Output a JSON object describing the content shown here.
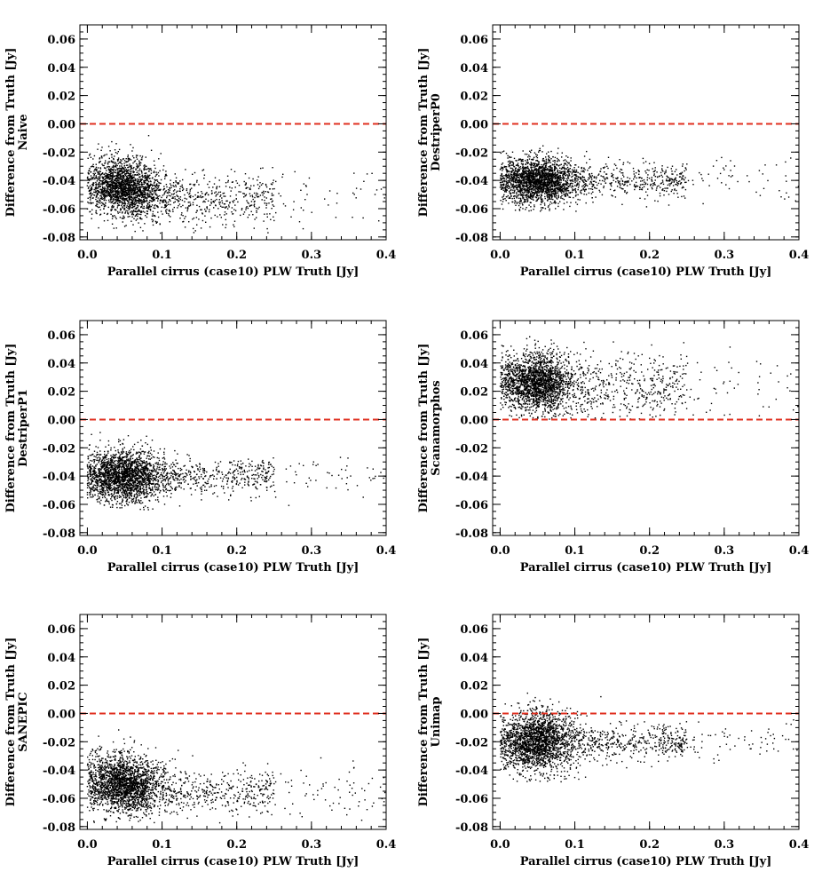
{
  "figure": {
    "layout": "3 rows x 2 columns",
    "reference_line_color": "#e03020",
    "point_color": "#000000"
  },
  "chart_data": [
    {
      "type": "scatter",
      "panel": "naive",
      "method": "Naive",
      "xlabel": "Parallel cirrus (case10) PLW Truth [Jy]",
      "ylabel": "Difference from Truth [Jy]",
      "xlim": [
        -0.01,
        0.4
      ],
      "ylim": [
        -0.082,
        0.07
      ],
      "xticks": [
        "0.0",
        "0.1",
        "0.2",
        "0.3",
        "0.4"
      ],
      "yticks": [
        "-0.08",
        "-0.06",
        "-0.04",
        "-0.02",
        "0.00",
        "0.02",
        "0.04",
        "0.06"
      ],
      "reference_line": 0.0,
      "cloud": {
        "x_center": 0.05,
        "y_center": -0.045,
        "x_spread": 0.03,
        "y_spread": 0.01,
        "slope": -0.08,
        "tail_y": -0.052,
        "tail_spread": 0.009,
        "y_min": -0.078,
        "y_max": 0.02
      }
    },
    {
      "type": "scatter",
      "panel": "destriperp0",
      "method": "DestriperP0",
      "xlabel": "Parallel cirrus (case10) PLW Truth [Jy]",
      "ylabel": "Difference from Truth [Jy]",
      "xlim": [
        -0.01,
        0.4
      ],
      "ylim": [
        -0.082,
        0.07
      ],
      "xticks": [
        "0.0",
        "0.1",
        "0.2",
        "0.3",
        "0.4"
      ],
      "yticks": [
        "-0.08",
        "-0.06",
        "-0.04",
        "-0.02",
        "0.00",
        "0.02",
        "0.04",
        "0.06"
      ],
      "reference_line": 0.0,
      "cloud": {
        "x_center": 0.05,
        "y_center": -0.04,
        "x_spread": 0.03,
        "y_spread": 0.008,
        "slope": 0.0,
        "tail_y": -0.04,
        "tail_spread": 0.006,
        "y_min": -0.062,
        "y_max": 0.02
      }
    },
    {
      "type": "scatter",
      "panel": "destriperp1",
      "method": "DestriperP1",
      "xlabel": "Parallel cirrus (case10) PLW Truth [Jy]",
      "ylabel": "Difference from Truth [Jy]",
      "xlim": [
        -0.01,
        0.4
      ],
      "ylim": [
        -0.082,
        0.07
      ],
      "xticks": [
        "0.0",
        "0.1",
        "0.2",
        "0.3",
        "0.4"
      ],
      "yticks": [
        "-0.08",
        "-0.06",
        "-0.04",
        "-0.02",
        "0.00",
        "0.02",
        "0.04",
        "0.06"
      ],
      "reference_line": 0.0,
      "cloud": {
        "x_center": 0.05,
        "y_center": -0.04,
        "x_spread": 0.03,
        "y_spread": 0.009,
        "slope": 0.0,
        "tail_y": -0.04,
        "tail_spread": 0.006,
        "y_min": -0.064,
        "y_max": 0.02
      }
    },
    {
      "type": "scatter",
      "panel": "scanamorphos",
      "method": "Scanamorphos",
      "xlabel": "Parallel cirrus (case10) PLW Truth [Jy]",
      "ylabel": "Difference from Truth [Jy]",
      "xlim": [
        -0.01,
        0.4
      ],
      "ylim": [
        -0.082,
        0.07
      ],
      "xticks": [
        "0.0",
        "0.1",
        "0.2",
        "0.3",
        "0.4"
      ],
      "yticks": [
        "-0.08",
        "-0.06",
        "-0.04",
        "-0.02",
        "0.00",
        "0.02",
        "0.04",
        "0.06"
      ],
      "reference_line": 0.0,
      "cloud": {
        "x_center": 0.05,
        "y_center": 0.026,
        "x_spread": 0.03,
        "y_spread": 0.01,
        "slope": -0.02,
        "tail_y": 0.022,
        "tail_spread": 0.012,
        "y_min": 0.0,
        "y_max": 0.07
      }
    },
    {
      "type": "scatter",
      "panel": "sanepic",
      "method": "SANEPIC",
      "xlabel": "Parallel cirrus (case10) PLW Truth [Jy]",
      "ylabel": "Difference from Truth [Jy]",
      "xlim": [
        -0.01,
        0.4
      ],
      "ylim": [
        -0.082,
        0.07
      ],
      "xticks": [
        "0.0",
        "0.1",
        "0.2",
        "0.3",
        "0.4"
      ],
      "yticks": [
        "-0.08",
        "-0.06",
        "-0.04",
        "-0.02",
        "0.00",
        "0.02",
        "0.04",
        "0.06"
      ],
      "reference_line": 0.0,
      "cloud": {
        "x_center": 0.05,
        "y_center": -0.05,
        "x_spread": 0.03,
        "y_spread": 0.01,
        "slope": -0.04,
        "tail_y": -0.055,
        "tail_spread": 0.008,
        "y_min": -0.078,
        "y_max": 0.02
      }
    },
    {
      "type": "scatter",
      "panel": "unimap",
      "method": "Unimap",
      "xlabel": "Parallel cirrus (case10) PLW Truth [Jy]",
      "ylabel": "Difference from Truth [Jy]",
      "xlim": [
        -0.01,
        0.4
      ],
      "ylim": [
        -0.082,
        0.07
      ],
      "xticks": [
        "0.0",
        "0.1",
        "0.2",
        "0.3",
        "0.4"
      ],
      "yticks": [
        "-0.08",
        "-0.06",
        "-0.04",
        "-0.02",
        "0.00",
        "0.02",
        "0.04",
        "0.06"
      ],
      "reference_line": 0.0,
      "cloud": {
        "x_center": 0.05,
        "y_center": -0.02,
        "x_spread": 0.03,
        "y_spread": 0.01,
        "slope": 0.0,
        "tail_y": -0.02,
        "tail_spread": 0.006,
        "y_min": -0.05,
        "y_max": 0.06
      }
    }
  ]
}
